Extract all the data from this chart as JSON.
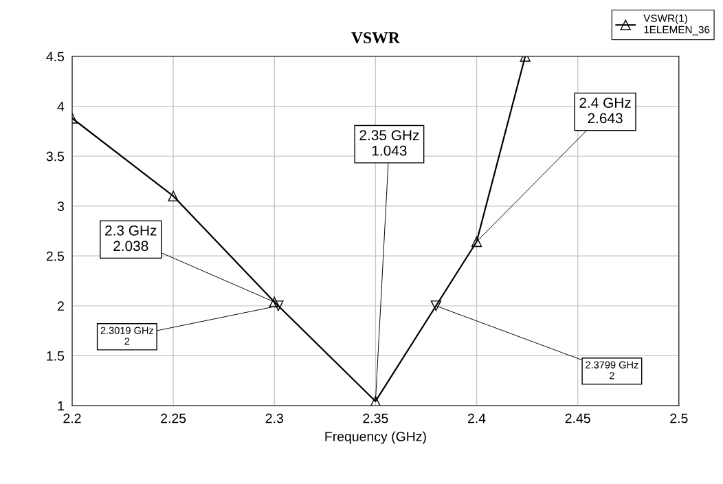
{
  "chart_data": {
    "type": "line",
    "title": "VSWR",
    "xlabel": "Frequency (GHz)",
    "x": [
      2.2,
      2.25,
      2.3,
      2.35,
      2.4,
      2.424
    ],
    "series": [
      {
        "name": "VSWR(1)\n1ELEMEN_36",
        "color": "#000000",
        "values": [
          3.88,
          3.1,
          2.038,
          1.043,
          2.643,
          4.5
        ]
      }
    ],
    "xlim": [
      2.2,
      2.5
    ],
    "xticks": [
      2.2,
      2.25,
      2.3,
      2.35,
      2.4,
      2.45,
      2.5
    ],
    "ylim": [
      1,
      4.5
    ],
    "yticks": [
      1,
      1.5,
      2,
      2.5,
      3,
      3.5,
      4,
      4.5
    ],
    "grid": true,
    "legend": "top right",
    "marker": "triangle",
    "line_style": "solid",
    "annotations": [
      {
        "text": "2.3 GHz\n2.038",
        "x": 2.3,
        "y": 2.038
      },
      {
        "text": "2.35 GHz\n1.043",
        "x": 2.35,
        "y": 1.043
      },
      {
        "text": "2.4 GHz\n2.643",
        "x": 2.4,
        "y": 2.643
      },
      {
        "text": "2.3019 GHz\n2",
        "x": 2.3019,
        "y": 2
      },
      {
        "text": "2.3799 GHz\n2",
        "x": 2.3799,
        "y": 2
      }
    ]
  }
}
